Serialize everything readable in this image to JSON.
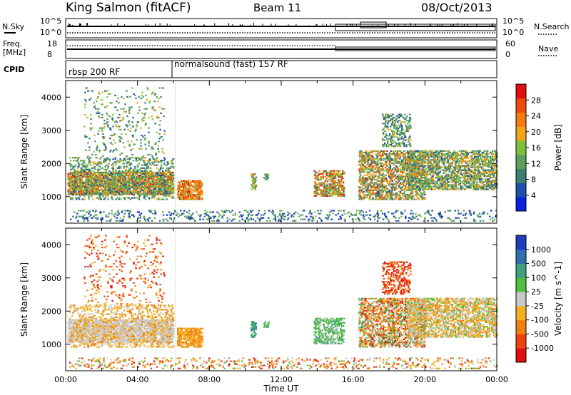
{
  "header": {
    "station": "King Salmon (fitACF)",
    "beam": "Beam 11",
    "date": "08/Oct/2013"
  },
  "top_panels": {
    "nsky_label": "N.Sky",
    "nsearch_label": "N.Search",
    "nsky_ticks": [
      "10^5",
      "10^0"
    ],
    "nsearch_ticks": [
      "10^5",
      "10^0"
    ],
    "freq_label_1": "Freq.",
    "freq_label_2": "[MHz]",
    "freq_ticks": [
      "18",
      "8"
    ],
    "nave_label": "Nave",
    "nave_ticks": [
      "60",
      "0"
    ],
    "cpid_label": "CPID",
    "cpid_1": "rbsp 200 RF",
    "cpid_2": "normalsound (fast) 157 RF"
  },
  "colors": {
    "power_scale": [
      "#0a1fe0",
      "#1f4fa8",
      "#3b7f74",
      "#5aa05a",
      "#7fbf3f",
      "#f2a51a",
      "#f47a12",
      "#f04a0a",
      "#e01010"
    ],
    "velocity_scale": [
      "#1f3fc0",
      "#2f6fb0",
      "#3f9f7f",
      "#4fc03f",
      "#c8c8c8",
      "#f5b020",
      "#f08010",
      "#f04010",
      "#e01010"
    ]
  },
  "chart_data": [
    {
      "type": "heatmap",
      "title": "Power",
      "xlabel": "Time UT",
      "ylabel": "Slant Range [km]",
      "x_ticks": [
        "00:00",
        "04:00",
        "08:00",
        "12:00",
        "16:00",
        "20:00",
        "00:00"
      ],
      "y_ticks": [
        "1000",
        "2000",
        "3000",
        "4000"
      ],
      "y_range": [
        200,
        4500
      ],
      "colorbar_label": "Power [dB]",
      "colorbar_ticks": [
        "4",
        "8",
        "12",
        "16",
        "20",
        "24",
        "28"
      ]
    },
    {
      "type": "heatmap",
      "title": "Velocity",
      "xlabel": "Time UT",
      "ylabel": "Slant Range [km]",
      "x_ticks": [
        "00:00",
        "04:00",
        "08:00",
        "12:00",
        "16:00",
        "20:00",
        "00:00"
      ],
      "y_ticks": [
        "1000",
        "2000",
        "3000",
        "4000"
      ],
      "y_range": [
        200,
        4500
      ],
      "colorbar_label": "Velocity [m s^-1]",
      "colorbar_ticks": [
        "1000",
        "500",
        "100",
        "25",
        "-25",
        "-100",
        "-500",
        "-1000"
      ]
    }
  ]
}
